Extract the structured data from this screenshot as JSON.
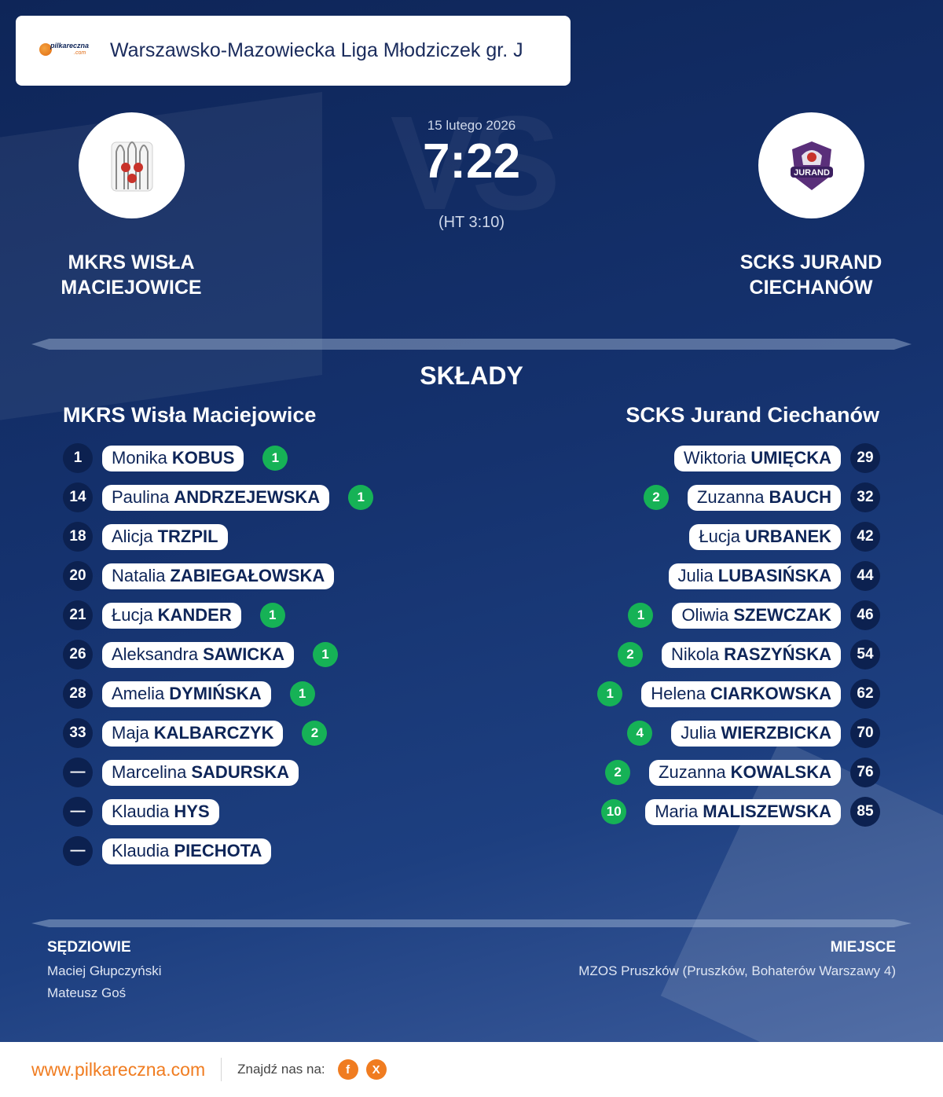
{
  "header": {
    "logo_brand": "pilkareczna",
    "logo_com": ".com",
    "league": "Warszawsko-Mazowiecka Liga Młodziczek gr. J"
  },
  "match": {
    "date": "15 lutego 2026",
    "score": "7:22",
    "halftime": "(HT 3:10)",
    "vs": "VS",
    "home_name": "MKRS WISŁA MACIEJOWICE",
    "away_name": "SCKS JURAND CIECHANÓW",
    "away_crest_text": "JURAND"
  },
  "lineups": {
    "title": "SKŁADY",
    "home_title": "MKRS Wisła Maciejowice",
    "away_title": "SCKS Jurand Ciechanów",
    "home": [
      {
        "num": "1",
        "first": "Monika",
        "last": "KOBUS",
        "goals": "1"
      },
      {
        "num": "14",
        "first": "Paulina",
        "last": "ANDRZEJEWSKA",
        "goals": "1"
      },
      {
        "num": "18",
        "first": "Alicja",
        "last": "TRZPIL",
        "goals": ""
      },
      {
        "num": "20",
        "first": "Natalia",
        "last": "ZABIEGAŁOWSKA",
        "goals": ""
      },
      {
        "num": "21",
        "first": "Łucja",
        "last": "KANDER",
        "goals": "1"
      },
      {
        "num": "26",
        "first": "Aleksandra",
        "last": "SAWICKA",
        "goals": "1"
      },
      {
        "num": "28",
        "first": "Amelia",
        "last": "DYMIŃSKA",
        "goals": "1"
      },
      {
        "num": "33",
        "first": "Maja",
        "last": "KALBARCZYK",
        "goals": "2"
      },
      {
        "num": "—",
        "first": "Marcelina",
        "last": "SADURSKA",
        "goals": ""
      },
      {
        "num": "—",
        "first": "Klaudia",
        "last": "HYS",
        "goals": ""
      },
      {
        "num": "—",
        "first": "Klaudia",
        "last": "PIECHOTA",
        "goals": ""
      }
    ],
    "away": [
      {
        "num": "29",
        "first": "Wiktoria",
        "last": "UMIĘCKA",
        "goals": ""
      },
      {
        "num": "32",
        "first": "Zuzanna",
        "last": "BAUCH",
        "goals": "2"
      },
      {
        "num": "42",
        "first": "Łucja",
        "last": "URBANEK",
        "goals": ""
      },
      {
        "num": "44",
        "first": "Julia",
        "last": "LUBASIŃSKA",
        "goals": ""
      },
      {
        "num": "46",
        "first": "Oliwia",
        "last": "SZEWCZAK",
        "goals": "1"
      },
      {
        "num": "54",
        "first": "Nikola",
        "last": "RASZYŃSKA",
        "goals": "2"
      },
      {
        "num": "62",
        "first": "Helena",
        "last": "CIARKOWSKA",
        "goals": "1"
      },
      {
        "num": "70",
        "first": "Julia",
        "last": "WIERZBICKA",
        "goals": "4"
      },
      {
        "num": "76",
        "first": "Zuzanna",
        "last": "KOWALSKA",
        "goals": "2"
      },
      {
        "num": "85",
        "first": "Maria",
        "last": "MALISZEWSKA",
        "goals": "10"
      }
    ]
  },
  "officials": {
    "title": "SĘDZIOWIE",
    "referee1": "Maciej Głupczyński",
    "referee2": "Mateusz Goś"
  },
  "venue": {
    "title": "MIEJSCE",
    "text": "MZOS Pruszków (Pruszków, Bohaterów Warszawy 4)"
  },
  "footer": {
    "url": "www.pilkareczna.com",
    "find_us": "Znajdź nas na:",
    "social": [
      {
        "icon": "facebook-icon",
        "glyph": "f"
      },
      {
        "icon": "x-icon",
        "glyph": "X"
      }
    ]
  },
  "colors": {
    "accent": "#f07c20",
    "goal_badge": "#16b256",
    "navy": "#0e2558"
  }
}
